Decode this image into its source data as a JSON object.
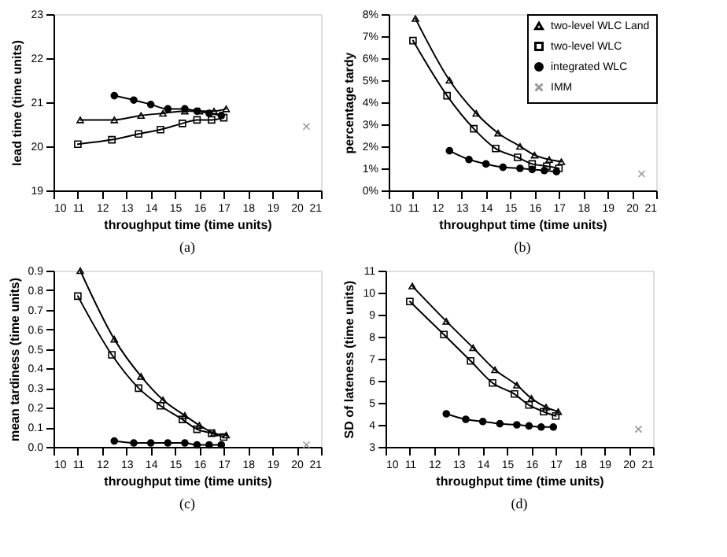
{
  "chart_data": [
    {
      "type": "line",
      "title": "(a)",
      "xlabel": "throughput time (time units)",
      "ylabel": "lead time (time units)",
      "xlim": [
        10,
        21
      ],
      "xticks": [
        10,
        11,
        12,
        13,
        14,
        15,
        16,
        17,
        18,
        19,
        20,
        21
      ],
      "ylim": [
        19,
        23
      ],
      "yticks": [
        19,
        20,
        21,
        22,
        23
      ],
      "grid": false,
      "legend": false,
      "line_style": "solid",
      "series": [
        {
          "color": "#000000",
          "marker": "triangle",
          "x": [
            11.1,
            12.5,
            13.6,
            14.5,
            15.4,
            16.0,
            16.6,
            17.1
          ],
          "values": [
            20.6,
            20.6,
            20.7,
            20.75,
            20.8,
            20.8,
            20.8,
            20.85
          ]
        },
        {
          "color": "#000000",
          "marker": "square",
          "x": [
            11.0,
            12.4,
            13.5,
            14.4,
            15.3,
            15.9,
            16.5,
            17.0
          ],
          "values": [
            20.05,
            20.15,
            20.28,
            20.38,
            20.52,
            20.6,
            20.6,
            20.65
          ]
        },
        {
          "color": "#000000",
          "marker": "circle",
          "x": [
            12.5,
            13.3,
            14.0,
            14.7,
            15.4,
            15.9,
            16.4,
            16.9
          ],
          "values": [
            21.15,
            21.05,
            20.95,
            20.85,
            20.85,
            20.8,
            20.75,
            20.7
          ]
        },
        {
          "color": "#999999",
          "marker": "cross",
          "x": [
            20.4
          ],
          "values": [
            20.45
          ]
        }
      ]
    },
    {
      "type": "line",
      "title": "(b)",
      "xlabel": "throughput time (time units)",
      "ylabel": "percentage tardy",
      "xlim": [
        10,
        21
      ],
      "xticks": [
        10,
        11,
        12,
        13,
        14,
        15,
        16,
        17,
        18,
        19,
        20,
        21
      ],
      "ylim": [
        0,
        8
      ],
      "yticks": [
        {
          "value": 0,
          "label": "0%"
        },
        {
          "value": 1,
          "label": "1%"
        },
        {
          "value": 2,
          "label": "2%"
        },
        {
          "value": 3,
          "label": "3%"
        },
        {
          "value": 4,
          "label": "4%"
        },
        {
          "value": 5,
          "label": "5%"
        },
        {
          "value": 6,
          "label": "6%"
        },
        {
          "value": 7,
          "label": "7%"
        },
        {
          "value": 8,
          "label": "8%"
        }
      ],
      "grid": false,
      "legend": "top right",
      "line_style": "solid",
      "series": [
        {
          "name": "two-level WLC Land",
          "color": "#000000",
          "marker": "triangle",
          "x": [
            11.1,
            12.5,
            13.6,
            14.5,
            15.4,
            16.0,
            16.6,
            17.1
          ],
          "values": [
            7.8,
            5.0,
            3.5,
            2.6,
            2.0,
            1.6,
            1.4,
            1.3
          ]
        },
        {
          "name": "two-level WLC",
          "color": "#000000",
          "marker": "square",
          "x": [
            11.0,
            12.4,
            13.5,
            14.4,
            15.3,
            15.9,
            16.5,
            17.0
          ],
          "values": [
            6.8,
            4.3,
            2.8,
            1.9,
            1.5,
            1.2,
            1.1,
            1.0
          ]
        },
        {
          "name": "integrated WLC",
          "color": "#000000",
          "marker": "circle",
          "x": [
            12.5,
            13.3,
            14.0,
            14.7,
            15.4,
            15.9,
            16.4,
            16.9
          ],
          "values": [
            1.8,
            1.4,
            1.2,
            1.05,
            1.0,
            0.95,
            0.9,
            0.85
          ]
        },
        {
          "name": "IMM",
          "color": "#999999",
          "marker": "cross",
          "x": [
            20.4
          ],
          "values": [
            0.75
          ]
        }
      ]
    },
    {
      "type": "line",
      "title": "(c)",
      "xlabel": "throughput time (time units)",
      "ylabel": "mean tardiness (time units)",
      "xlim": [
        10,
        21
      ],
      "xticks": [
        10,
        11,
        12,
        13,
        14,
        15,
        16,
        17,
        18,
        19,
        20,
        21
      ],
      "ylim": [
        0,
        0.9
      ],
      "yticks": [
        {
          "value": 0,
          "label": "0.0"
        },
        0.1,
        0.2,
        0.3,
        0.4,
        0.5,
        0.6,
        0.7,
        0.8,
        0.9
      ],
      "grid": false,
      "legend": false,
      "line_style": "solid",
      "series": [
        {
          "color": "#000000",
          "marker": "triangle",
          "x": [
            11.1,
            12.5,
            13.6,
            14.5,
            15.4,
            16.0,
            16.6,
            17.1
          ],
          "values": [
            0.9,
            0.55,
            0.36,
            0.24,
            0.16,
            0.11,
            0.07,
            0.06
          ]
        },
        {
          "color": "#000000",
          "marker": "square",
          "x": [
            11.0,
            12.4,
            13.5,
            14.4,
            15.3,
            15.9,
            16.5,
            17.0
          ],
          "values": [
            0.77,
            0.47,
            0.3,
            0.21,
            0.14,
            0.09,
            0.07,
            0.05
          ]
        },
        {
          "color": "#000000",
          "marker": "circle",
          "x": [
            12.5,
            13.3,
            14.0,
            14.7,
            15.4,
            15.9,
            16.4,
            16.9
          ],
          "values": [
            0.03,
            0.02,
            0.02,
            0.02,
            0.02,
            0.01,
            0.01,
            0.01
          ]
        },
        {
          "color": "#999999",
          "marker": "cross",
          "x": [
            20.4
          ],
          "values": [
            0.01
          ]
        }
      ]
    },
    {
      "type": "line",
      "title": "(d)",
      "xlabel": "throughput time (time units)",
      "ylabel": "SD of lateness (time units)",
      "xlim": [
        10,
        21
      ],
      "xticks": [
        10,
        11,
        12,
        13,
        14,
        15,
        16,
        17,
        18,
        19,
        20,
        21
      ],
      "ylim": [
        3,
        11
      ],
      "yticks": [
        3,
        4,
        5,
        6,
        7,
        8,
        9,
        10,
        11
      ],
      "grid": false,
      "legend": false,
      "line_style": "solid",
      "series": [
        {
          "color": "#000000",
          "marker": "triangle",
          "x": [
            11.1,
            12.5,
            13.6,
            14.5,
            15.4,
            16.0,
            16.6,
            17.1
          ],
          "values": [
            10.3,
            8.7,
            7.5,
            6.5,
            5.8,
            5.2,
            4.8,
            4.6
          ]
        },
        {
          "color": "#000000",
          "marker": "square",
          "x": [
            11.0,
            12.4,
            13.5,
            14.4,
            15.3,
            15.9,
            16.5,
            17.0
          ],
          "values": [
            9.6,
            8.1,
            6.9,
            5.9,
            5.4,
            4.9,
            4.6,
            4.4
          ]
        },
        {
          "color": "#000000",
          "marker": "circle",
          "x": [
            12.5,
            13.3,
            14.0,
            14.7,
            15.4,
            15.9,
            16.4,
            16.9
          ],
          "values": [
            4.5,
            4.25,
            4.15,
            4.05,
            4.0,
            3.95,
            3.9,
            3.9
          ]
        },
        {
          "color": "#999999",
          "marker": "cross",
          "x": [
            20.4
          ],
          "values": [
            3.8
          ]
        }
      ]
    }
  ]
}
